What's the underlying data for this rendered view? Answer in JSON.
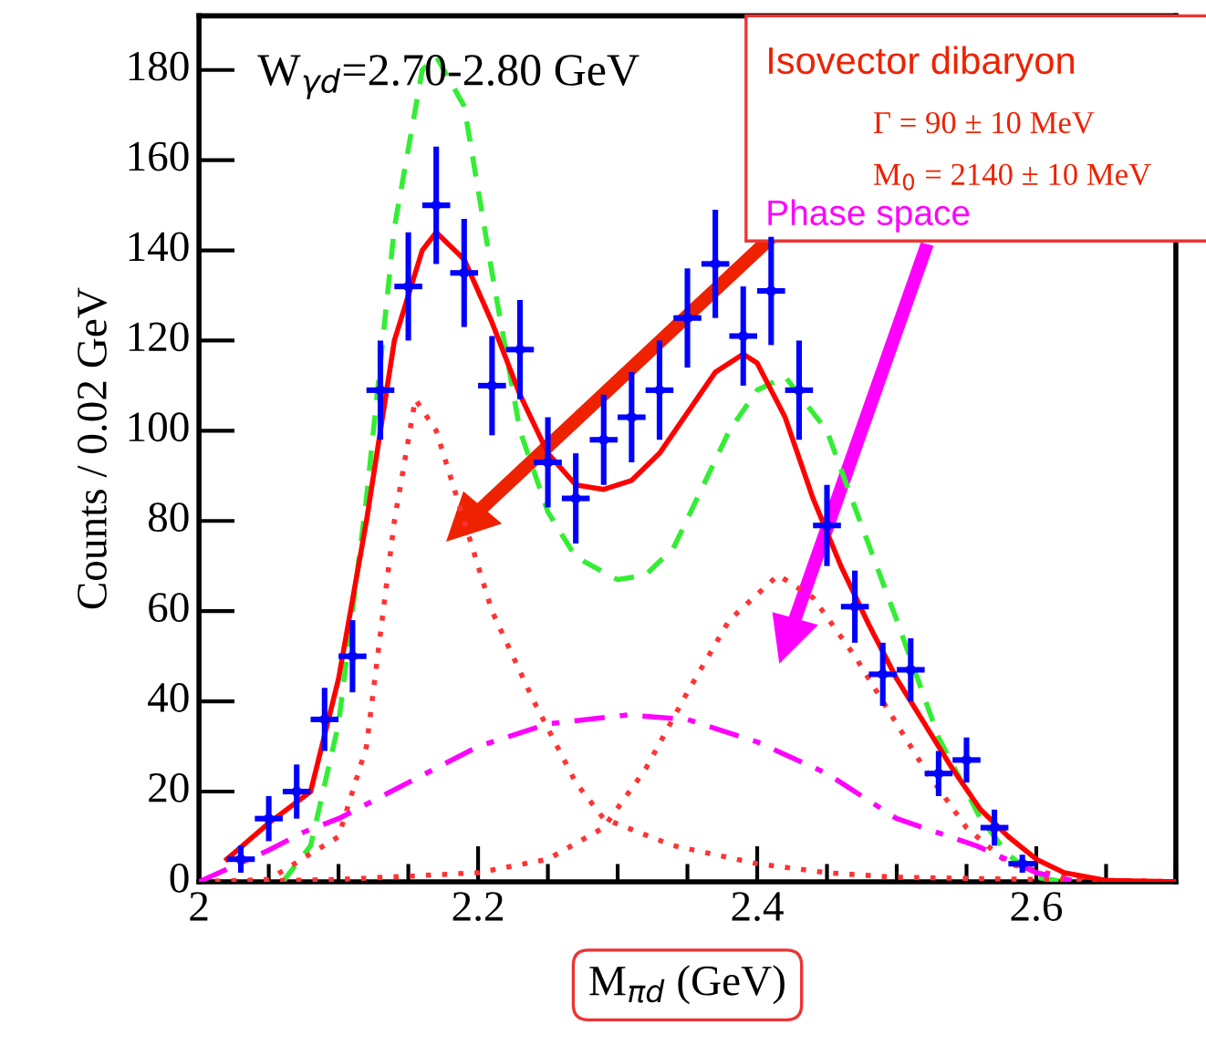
{
  "chart_data": {
    "type": "scatter",
    "xlabel": "M$_{πd}$ (GeV)",
    "ylabel": "Counts / 0.02 GeV",
    "xlim": [
      2,
      2.7
    ],
    "ylim": [
      0,
      192
    ],
    "xticks": [
      2,
      {
        "value": 2.2,
        "label": "2.2"
      },
      {
        "value": 2.4,
        "label": "2.4"
      },
      {
        "value": 2.6,
        "label": "2.6"
      }
    ],
    "yticks": [
      0,
      20,
      40,
      60,
      80,
      100,
      120,
      140,
      160,
      180
    ],
    "grid": false,
    "legend": false,
    "annotations": [
      "W$_{γd}$=2.70-2.80 GeV",
      "Isovector dibaryon",
      "Γ = 90 ± 10 MeV",
      "M$_{0}$ = 2140 ± 10 MeV",
      "Phase space"
    ],
    "series": [
      {
        "marker": "circle",
        "color": "#0000ff",
        "x": [
          2.03,
          2.05,
          2.07,
          2.09,
          2.11,
          2.13,
          2.15,
          2.17,
          2.19,
          2.21,
          2.23,
          2.25,
          2.27,
          2.29,
          2.31,
          2.33,
          2.35,
          2.37,
          2.39,
          2.41,
          2.43,
          2.45,
          2.47,
          2.49,
          2.51,
          2.53,
          2.55,
          2.57,
          2.59
        ],
        "values": [
          5,
          14,
          20,
          36,
          50,
          109,
          132,
          150,
          135,
          110,
          118,
          93,
          85,
          98,
          103,
          109,
          125,
          137,
          121,
          131,
          109,
          79,
          61,
          46,
          47,
          24,
          27,
          12,
          4
        ],
        "errors": [
          3,
          5,
          6,
          7,
          8,
          11,
          12,
          13,
          12,
          11,
          11,
          10,
          10,
          10,
          10,
          11,
          11,
          12,
          11,
          12,
          11,
          9,
          8,
          7,
          7,
          5,
          5,
          4,
          2
        ],
        "xerrors": [
          0.01,
          0.01,
          0.01,
          0.01,
          0.01,
          0.01,
          0.01,
          0.01,
          0.01,
          0.01,
          0.01,
          0.01,
          0.01,
          0.01,
          0.01,
          0.01,
          0.01,
          0.01,
          0.01,
          0.01,
          0.01,
          0.01,
          0.01,
          0.01,
          0.01,
          0.01,
          0.01,
          0.01,
          0.01
        ]
      },
      {
        "type": "line",
        "line_style": "dashed",
        "color": "#33ee33",
        "x": [
          2.06,
          2.08,
          2.1,
          2.12,
          2.14,
          2.16,
          2.17,
          2.19,
          2.21,
          2.23,
          2.25,
          2.27,
          2.3,
          2.32,
          2.34,
          2.36,
          2.38,
          2.4,
          2.42,
          2.45,
          2.47,
          2.5,
          2.53,
          2.56,
          2.58,
          2.6,
          2.62
        ],
        "values": [
          0,
          8,
          35,
          85,
          145,
          180,
          183,
          172,
          135,
          100,
          82,
          72,
          67,
          68,
          74,
          87,
          100,
          109,
          112,
          100,
          83,
          58,
          32,
          14,
          6,
          1,
          0
        ]
      },
      {
        "type": "line",
        "line_style": "dotted",
        "color": "#ff3333",
        "x": [
          2.0,
          2.05,
          2.1,
          2.12,
          2.14,
          2.155,
          2.17,
          2.19,
          2.21,
          2.24,
          2.27,
          2.29,
          2.34,
          2.4,
          2.45,
          2.5,
          2.6,
          2.7
        ],
        "values": [
          0,
          0.5,
          10,
          30,
          80,
          107,
          100,
          80,
          60,
          40,
          22,
          14,
          8,
          4,
          2,
          1,
          0.5,
          0
        ]
      },
      {
        "type": "line",
        "line_style": "dotted",
        "color": "#ff3333",
        "x": [
          2.0,
          2.1,
          2.2,
          2.25,
          2.29,
          2.32,
          2.35,
          2.38,
          2.415,
          2.44,
          2.47,
          2.49,
          2.52,
          2.55,
          2.58,
          2.62,
          2.66,
          2.7
        ],
        "values": [
          0,
          0.5,
          2,
          5,
          12,
          25,
          42,
          58,
          68,
          63,
          50,
          40,
          25,
          12,
          4,
          1,
          0.2,
          0
        ]
      },
      {
        "type": "line",
        "line_style": "dashdot",
        "color": "#ff00ff",
        "x": [
          2.0,
          2.05,
          2.075,
          2.1,
          2.15,
          2.2,
          2.25,
          2.307,
          2.35,
          2.4,
          2.45,
          2.5,
          2.557,
          2.6,
          2.63
        ],
        "values": [
          0,
          7,
          11,
          14,
          22,
          30,
          35,
          37,
          36,
          31,
          24,
          14,
          8,
          2,
          0
        ]
      },
      {
        "type": "line",
        "line_style": "solid",
        "color": "#ff0000",
        "x": [
          2.02,
          2.05,
          2.08,
          2.1,
          2.12,
          2.14,
          2.16,
          2.17,
          2.19,
          2.21,
          2.23,
          2.25,
          2.27,
          2.29,
          2.31,
          2.33,
          2.35,
          2.37,
          2.39,
          2.4,
          2.42,
          2.44,
          2.46,
          2.48,
          2.5,
          2.52,
          2.54,
          2.56,
          2.58,
          2.6,
          2.62,
          2.65,
          2.7
        ],
        "values": [
          5,
          13,
          20,
          45,
          80,
          120,
          140,
          144,
          138,
          124,
          108,
          95,
          88,
          87,
          89,
          95,
          104,
          113,
          117,
          115,
          103,
          85,
          70,
          57,
          45,
          35,
          25,
          16,
          10,
          5,
          2,
          0.3,
          0
        ]
      }
    ]
  }
}
